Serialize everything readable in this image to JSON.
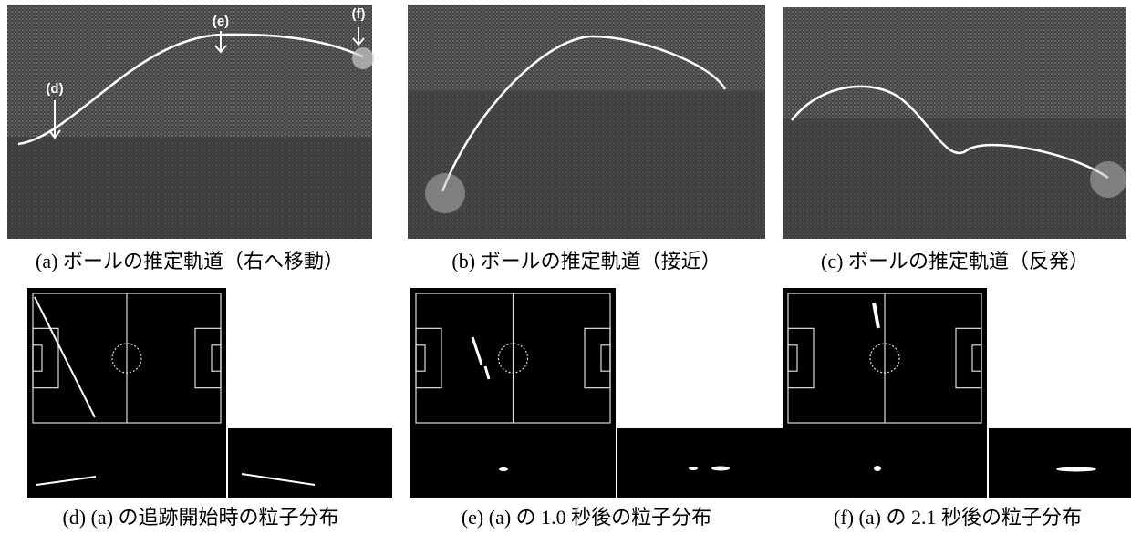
{
  "panels": [
    {
      "caption": "(a) ボールの推定軌道（右へ移動）",
      "annotations": [
        "(d)",
        "(e)",
        "(f)"
      ]
    },
    {
      "caption": "(b) ボールの推定軌道（接近）"
    },
    {
      "caption": "(c) ボールの推定軌道（反発）"
    },
    {
      "caption": "(d) (a) の追跡開始時の粒子分布"
    },
    {
      "caption": "(e) (a) の 1.0 秒後の粒子分布"
    },
    {
      "caption": "(f) (a) の 2.1 秒後の粒子分布"
    }
  ]
}
